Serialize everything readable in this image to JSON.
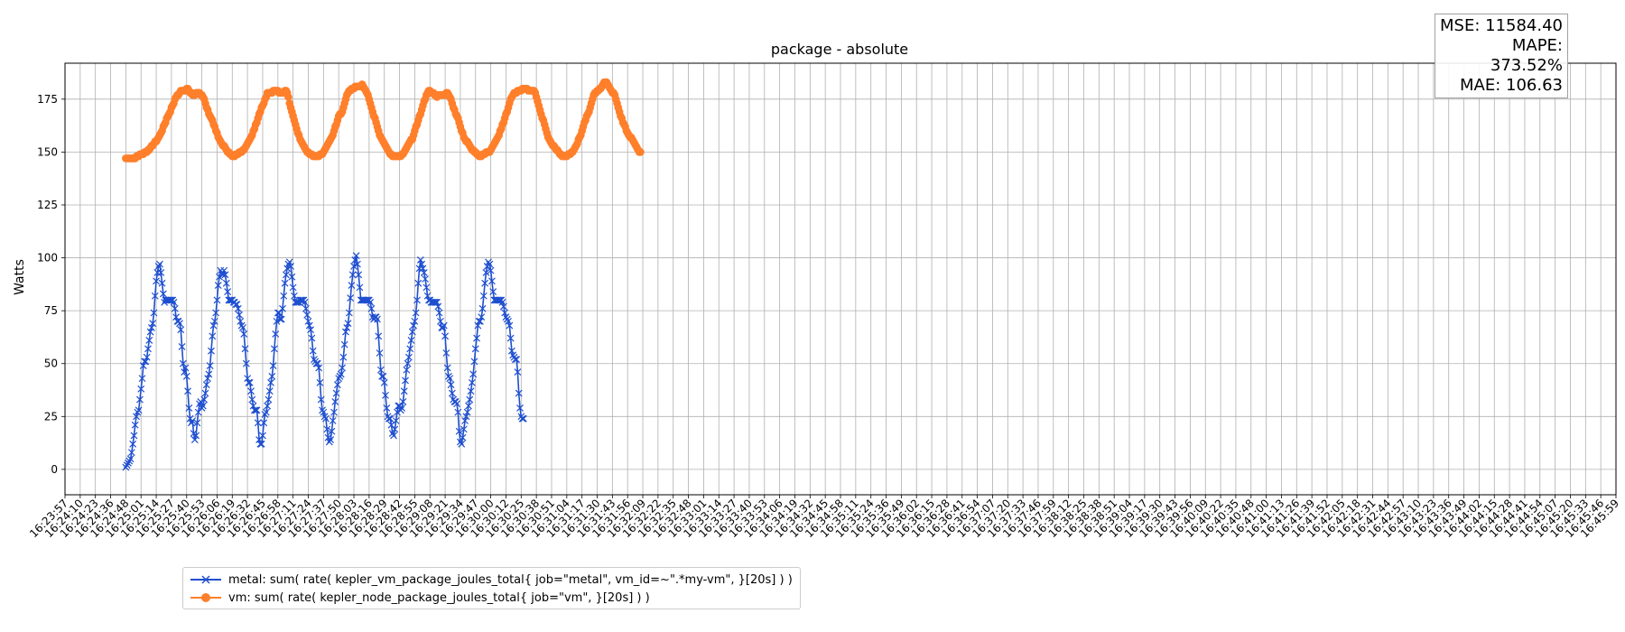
{
  "chart_data": {
    "type": "line",
    "title": "package - absolute",
    "xlabel": "",
    "ylabel": "Watts",
    "ylim": [
      -12,
      192
    ],
    "y_ticks": [
      0,
      25,
      50,
      75,
      100,
      125,
      150,
      175
    ],
    "grid": true,
    "legend_placement": "bottom-left (below plot)",
    "x_tick_labels": [
      "16:23:57",
      "16:24:10",
      "16:24:23",
      "16:24:36",
      "16:24:48",
      "16:25:01",
      "16:25:14",
      "16:25:27",
      "16:25:40",
      "16:25:53",
      "16:26:06",
      "16:26:19",
      "16:26:32",
      "16:26:45",
      "16:26:58",
      "16:27:11",
      "16:27:24",
      "16:27:37",
      "16:27:50",
      "16:28:03",
      "16:28:16",
      "16:28:29",
      "16:28:42",
      "16:28:55",
      "16:29:08",
      "16:29:21",
      "16:29:34",
      "16:29:47",
      "16:30:00",
      "16:30:12",
      "16:30:25",
      "16:30:38",
      "16:30:51",
      "16:31:04",
      "16:31:17",
      "16:31:30",
      "16:31:43",
      "16:31:56",
      "16:32:09",
      "16:32:22",
      "16:32:35",
      "16:32:48",
      "16:33:01",
      "16:33:14",
      "16:33:27",
      "16:33:40",
      "16:33:53",
      "16:34:06",
      "16:34:19",
      "16:34:32",
      "16:34:45",
      "16:34:58",
      "16:35:11",
      "16:35:24",
      "16:35:36",
      "16:35:49",
      "16:36:02",
      "16:36:15",
      "16:36:28",
      "16:36:41",
      "16:36:54",
      "16:37:07",
      "16:37:20",
      "16:37:33",
      "16:37:46",
      "16:37:59",
      "16:38:12",
      "16:38:25",
      "16:38:38",
      "16:38:51",
      "16:39:04",
      "16:39:17",
      "16:39:30",
      "16:39:43",
      "16:39:56",
      "16:40:09",
      "16:40:22",
      "16:40:35",
      "16:40:48",
      "16:41:00",
      "16:41:13",
      "16:41:26",
      "16:41:39",
      "16:41:52",
      "16:42:05",
      "16:42:18",
      "16:42:31",
      "16:42:44",
      "16:42:57",
      "16:43:10",
      "16:43:23",
      "16:43:36",
      "16:43:49",
      "16:44:02",
      "16:44:15",
      "16:44:28",
      "16:44:41",
      "16:44:54",
      "16:45:07",
      "16:45:20",
      "16:45:33",
      "16:45:46",
      "16:45:59"
    ],
    "x_tick_index_step": 13,
    "series": [
      {
        "name": "metal: sum( rate( kepler_vm_package_joules_total{ job=\"metal\", vm_id=~\".*my-vm\", }[20s] ) )",
        "color": "#1f4fd0",
        "marker": "x",
        "start_index": 52,
        "values": [
          1,
          2,
          3,
          4,
          5,
          8,
          12,
          16,
          21,
          25,
          27,
          28,
          33,
          38,
          43,
          49,
          51,
          51,
          53,
          57,
          61,
          65,
          67,
          69,
          74,
          82,
          89,
          93,
          96,
          97,
          93,
          88,
          83,
          79,
          80,
          80,
          80,
          80,
          80,
          80,
          80,
          79,
          76,
          72,
          70,
          70,
          69,
          66,
          58,
          50,
          46,
          48,
          44,
          37,
          29,
          24,
          22,
          23,
          17,
          14,
          16,
          22,
          27,
          31,
          32,
          29,
          30,
          33,
          36,
          40,
          43,
          45,
          49,
          56,
          63,
          68,
          70,
          74,
          80,
          87,
          91,
          94,
          93,
          92,
          94,
          92,
          88,
          84,
          80,
          80,
          80,
          80,
          79,
          79,
          78,
          78,
          76,
          73,
          70,
          68,
          67,
          64,
          57,
          50,
          43,
          41,
          41,
          37,
          33,
          30,
          28,
          28,
          28,
          22,
          14,
          12,
          12,
          16,
          22,
          26,
          27,
          30,
          33,
          37,
          41,
          44,
          49,
          57,
          64,
          70,
          74,
          74,
          71,
          71,
          76,
          82,
          88,
          92,
          95,
          97,
          98,
          96,
          91,
          86,
          82,
          79,
          79,
          79,
          79,
          80,
          80,
          80,
          80,
          79,
          76,
          73,
          70,
          68,
          66,
          62,
          56,
          52,
          51,
          50,
          50,
          48,
          41,
          33,
          28,
          27,
          25,
          24,
          19,
          15,
          13,
          14,
          18,
          23,
          27,
          32,
          36,
          40,
          43,
          44,
          45,
          48,
          53,
          59,
          65,
          67,
          69,
          74,
          81,
          87,
          92,
          96,
          99,
          101,
          97,
          92,
          86,
          80,
          80,
          80,
          80,
          80,
          80,
          80,
          80,
          79,
          76,
          72,
          71,
          72,
          72,
          71,
          63,
          55,
          47,
          44,
          44,
          41,
          35,
          29,
          25,
          24,
          24,
          21,
          17,
          16,
          19,
          23,
          27,
          30,
          30,
          28,
          29,
          32,
          37,
          42,
          47,
          50,
          53,
          57,
          61,
          65,
          68,
          70,
          74,
          80,
          88,
          95,
          99,
          97,
          95,
          93,
          90,
          86,
          82,
          80,
          80,
          79,
          79,
          79,
          79,
          79,
          79,
          77,
          74,
          70,
          67,
          67,
          68,
          63,
          55,
          48,
          44,
          43,
          40,
          36,
          33,
          32,
          32,
          31,
          27,
          18,
          13,
          12,
          15,
          19,
          23,
          25,
          27,
          30,
          33,
          37,
          41,
          45,
          51,
          57,
          62,
          68,
          70,
          70,
          72,
          76,
          82,
          88,
          93,
          96,
          98,
          97,
          94,
          89,
          84,
          80,
          80,
          80,
          80,
          80,
          80,
          80,
          79,
          77,
          74,
          72,
          71,
          70,
          68,
          62,
          56,
          54,
          53,
          52,
          52,
          46,
          36,
          29,
          25,
          24,
          24
        ]
      },
      {
        "name": "vm: sum( rate( kepler_node_package_joules_total{ job=\"vm\", }[20s] ) )",
        "color": "#ff7f2a",
        "marker": "o",
        "start_index": 52,
        "values": [
          147,
          147,
          147,
          147,
          147,
          147,
          147,
          147,
          147,
          148,
          148,
          148,
          149,
          149,
          149,
          149,
          150,
          150,
          150,
          151,
          151,
          152,
          153,
          153,
          154,
          155,
          155,
          156,
          157,
          158,
          159,
          160,
          162,
          163,
          164,
          166,
          167,
          168,
          169,
          171,
          172,
          173,
          175,
          176,
          177,
          177,
          178,
          179,
          179,
          179,
          179,
          179,
          180,
          180,
          179,
          178,
          178,
          177,
          177,
          177,
          178,
          178,
          178,
          178,
          177,
          177,
          176,
          175,
          173,
          171,
          170,
          168,
          167,
          166,
          165,
          163,
          162,
          160,
          159,
          157,
          156,
          155,
          154,
          153,
          153,
          152,
          151,
          150,
          150,
          149,
          149,
          148,
          148,
          148,
          149,
          149,
          149,
          150,
          150,
          150,
          151,
          151,
          152,
          153,
          154,
          155,
          156,
          157,
          158,
          160,
          161,
          163,
          164,
          166,
          168,
          169,
          171,
          172,
          173,
          175,
          176,
          178,
          178,
          178,
          178,
          178,
          179,
          179,
          179,
          179,
          179,
          178,
          178,
          178,
          178,
          178,
          179,
          179,
          178,
          176,
          173,
          171,
          169,
          167,
          165,
          163,
          161,
          159,
          158,
          156,
          155,
          154,
          153,
          152,
          151,
          150,
          150,
          149,
          149,
          149,
          148,
          148,
          148,
          148,
          148,
          148,
          149,
          149,
          149,
          150,
          151,
          152,
          153,
          154,
          155,
          156,
          157,
          158,
          160,
          162,
          163,
          165,
          167,
          168,
          168,
          169,
          171,
          173,
          175,
          177,
          178,
          179,
          179,
          180,
          180,
          180,
          181,
          181,
          181,
          181,
          181,
          181,
          182,
          181,
          180,
          179,
          178,
          177,
          175,
          173,
          171,
          169,
          167,
          166,
          164,
          162,
          160,
          158,
          157,
          156,
          155,
          154,
          153,
          152,
          151,
          150,
          149,
          149,
          148,
          148,
          148,
          148,
          148,
          148,
          148,
          148,
          149,
          149,
          150,
          151,
          152,
          153,
          154,
          155,
          156,
          156,
          158,
          160,
          162,
          163,
          165,
          167,
          168,
          170,
          172,
          174,
          175,
          177,
          178,
          179,
          179,
          178,
          178,
          178,
          177,
          177,
          176,
          177,
          177,
          177,
          177,
          177,
          177,
          177,
          178,
          178,
          177,
          176,
          175,
          173,
          171,
          170,
          168,
          167,
          166,
          164,
          162,
          160,
          159,
          157,
          156,
          155,
          155,
          154,
          153,
          152,
          151,
          151,
          150,
          150,
          149,
          149,
          148,
          148,
          148,
          149,
          149,
          149,
          150,
          150,
          150,
          150,
          151,
          152,
          153,
          154,
          155,
          156,
          157,
          158,
          160,
          161,
          163,
          164,
          166,
          168,
          169,
          171,
          173,
          175,
          176,
          177,
          178,
          178,
          178,
          179,
          179,
          179,
          179,
          180,
          180,
          180,
          180,
          180,
          179,
          179,
          179,
          179,
          179,
          179,
          178,
          176,
          174,
          172,
          170,
          168,
          166,
          165,
          163,
          161,
          159,
          157,
          156,
          155,
          154,
          153,
          153,
          152,
          151,
          151,
          150,
          149,
          149,
          148,
          148,
          148,
          148,
          148,
          149,
          149,
          149,
          150,
          150,
          151,
          152,
          153,
          154,
          156,
          157,
          158,
          160,
          162,
          164,
          165,
          167,
          168,
          169,
          171,
          173,
          175,
          177,
          178,
          178,
          179,
          179,
          180,
          180,
          181,
          182,
          183,
          183,
          183,
          182,
          181,
          180,
          179,
          178,
          178,
          177,
          175,
          173,
          171,
          169,
          167,
          166,
          164,
          163,
          162,
          160,
          159,
          158,
          157,
          157,
          156,
          155,
          154,
          153,
          152,
          151,
          150,
          150
        ]
      }
    ]
  },
  "stats": {
    "mse": "MSE: 11584.40",
    "mape": "MAPE: 373.52%",
    "mae": "MAE: 106.63"
  },
  "legend": {
    "metal_label": "metal: sum( rate( kepler_vm_package_joules_total{ job=\"metal\", vm_id=~\".*my-vm\", }[20s] ) )",
    "vm_label": "vm: sum( rate( kepler_node_package_joules_total{ job=\"vm\", }[20s] ) )"
  }
}
